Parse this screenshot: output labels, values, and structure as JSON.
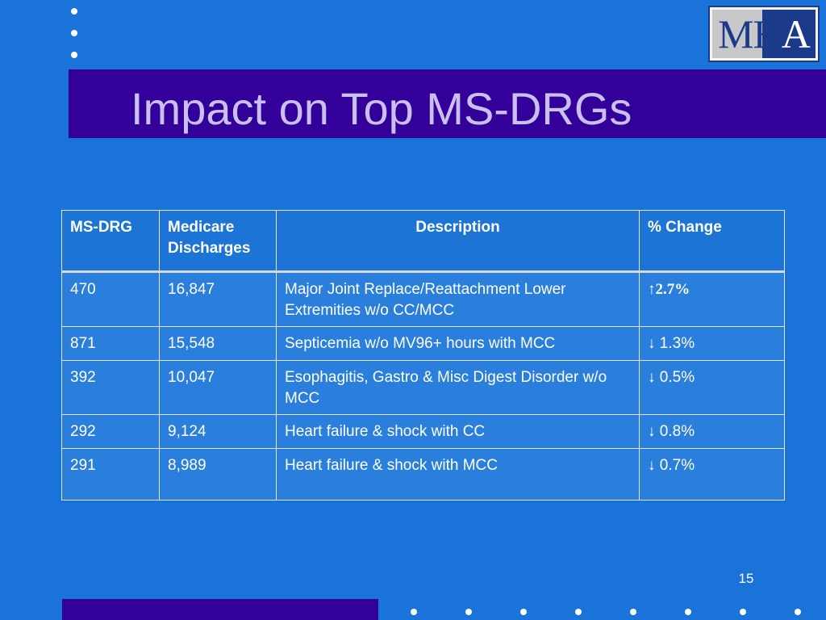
{
  "slide": {
    "title": "Impact on Top MS-DRGs",
    "page_number": "15",
    "colors": {
      "background": "#1a73d9",
      "band": "#330099",
      "title_text": "#c9c0f0",
      "table_border": "#e6e6e6",
      "logo_navy": "#1b3a8a",
      "logo_gray": "#c8c8c8"
    }
  },
  "logo": {
    "letters": [
      "M",
      "H",
      "A"
    ],
    "icon": "mha-logo-icon"
  },
  "table": {
    "headers": {
      "ms_drg": "MS-DRG",
      "discharges_line1": "Medicare",
      "discharges_line2": "Discharges",
      "description": "Description",
      "change": "% Change"
    },
    "rows": [
      {
        "ms_drg": "470",
        "discharges": "16,847",
        "description": "Major Joint Replace/Reattachment Lower Extremities w/o CC/MCC",
        "change": "↑2.7%"
      },
      {
        "ms_drg": "871",
        "discharges": "15,548",
        "description": "Septicemia w/o MV96+ hours with MCC",
        "change": "↓ 1.3%"
      },
      {
        "ms_drg": "392",
        "discharges": "10,047",
        "description": "Esophagitis, Gastro & Misc Digest Disorder w/o MCC",
        "change": "↓ 0.5%"
      },
      {
        "ms_drg": "292",
        "discharges": "9,124",
        "description": "Heart failure & shock with CC",
        "change": "↓ 0.8%"
      },
      {
        "ms_drg": "291",
        "discharges": "8,989",
        "description": "Heart failure & shock with MCC",
        "change": "↓ 0.7%"
      }
    ]
  }
}
